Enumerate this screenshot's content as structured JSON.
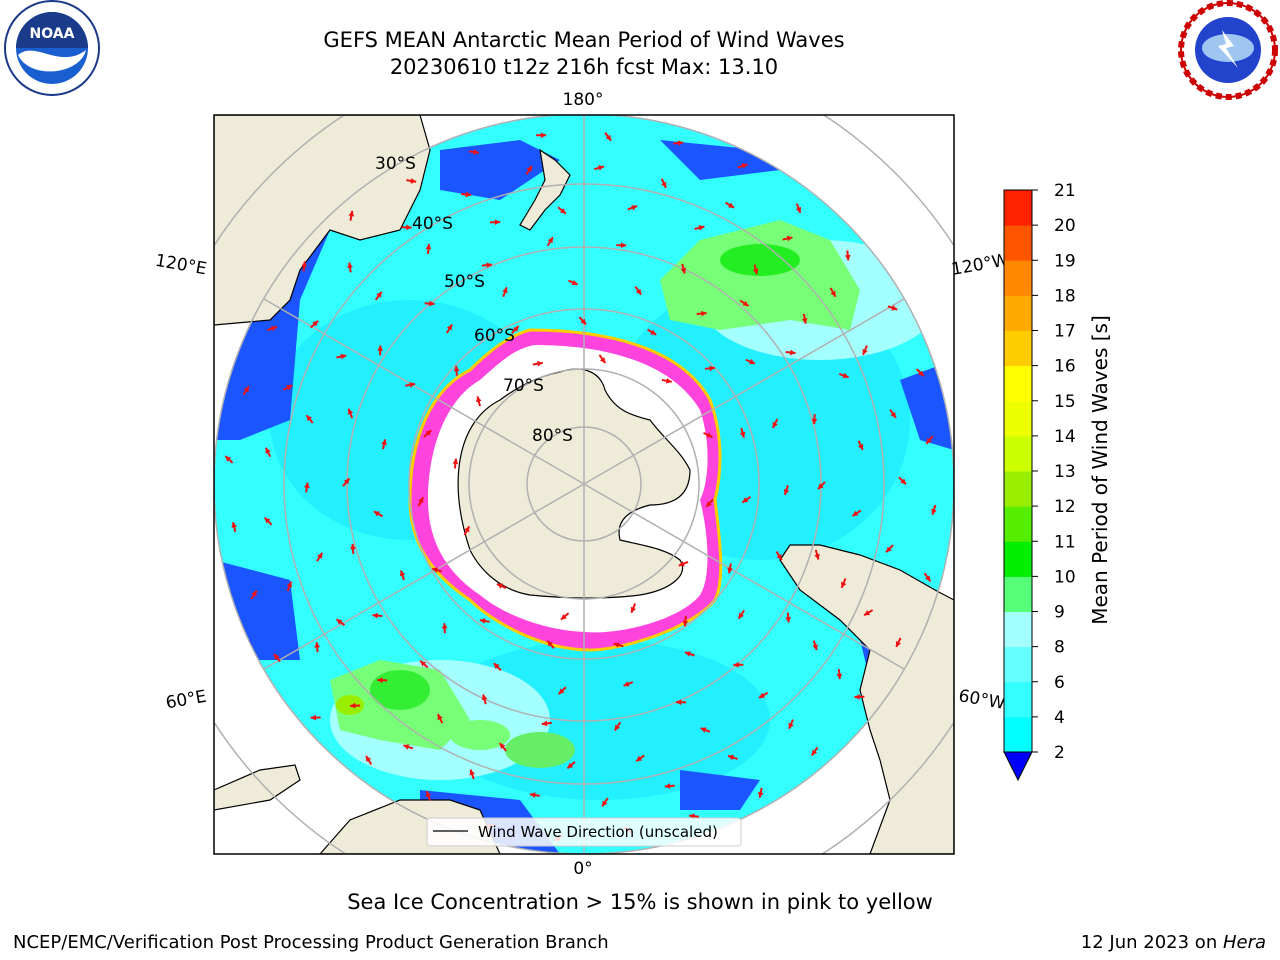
{
  "header": {
    "title_line1": "GEFS MEAN Antarctic Mean Period of Wind Waves",
    "title_line2": "20230610 t12z 216h fcst   Max: 13.10"
  },
  "map": {
    "longitude_labels": {
      "top": "180°",
      "bottom": "0°",
      "upper_left": "120°E",
      "lower_left": "60°E",
      "upper_right": "120°W",
      "lower_right": "60°W"
    },
    "latitude_labels": [
      "30°S",
      "40°S",
      "50°S",
      "60°S",
      "70°S",
      "80°S"
    ],
    "legend_label": "Wind Wave Direction (unscaled)",
    "colors": {
      "ocean_low": "#0000ff",
      "ocean_mid": "#00ffff",
      "ocean_high": "#55ff55",
      "land": "#efebd9",
      "sea_ice": "#ff33dd",
      "arrows": "#ee1111",
      "graticule": "#b0b0b0"
    }
  },
  "colorbar": {
    "label": "Mean Period of Wind Waves [s]",
    "ticks": [
      "2",
      "4",
      "6",
      "8",
      "9",
      "10",
      "11",
      "12",
      "13",
      "14",
      "15",
      "16",
      "17",
      "18",
      "19",
      "20",
      "21"
    ],
    "colors": [
      "#0066ff",
      "#00ffff",
      "#33ffff",
      "#66ffff",
      "#a4ffff",
      "#55ff77",
      "#00ee00",
      "#55ee00",
      "#99ee00",
      "#ccff00",
      "#eeff00",
      "#ffff00",
      "#ffcc00",
      "#ffaa00",
      "#ff8800",
      "#ff5500",
      "#ff2200",
      "#ff0000"
    ]
  },
  "footer": {
    "ice_note": "Sea Ice Concentration > 15% is shown in pink to yellow",
    "credit": "NCEP/EMC/Verification Post Processing Product Generation Branch",
    "date_prefix": "12 Jun 2023 on ",
    "machine": "Hera"
  }
}
